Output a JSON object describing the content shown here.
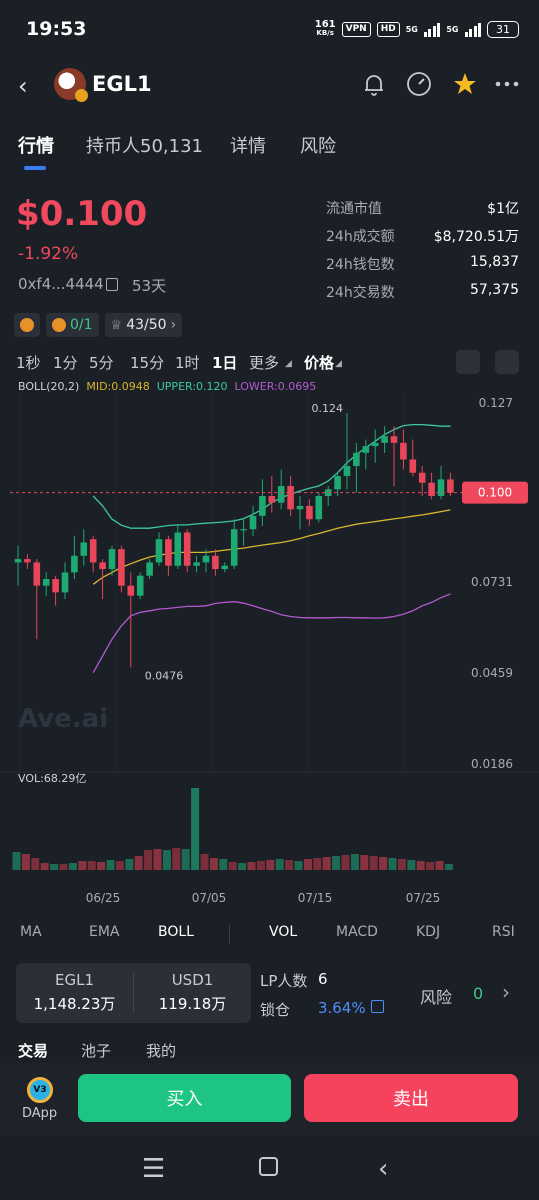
{
  "status_bar": {
    "time": "19:53",
    "net_speed": "161",
    "net_unit": "KB/s",
    "vpn": "VPN",
    "hd": "HD",
    "sim1": "5G",
    "sim2": "5G",
    "battery": "31"
  },
  "header": {
    "token": "EGL1",
    "icons": [
      "back-icon",
      "bell-icon",
      "speedometer-icon",
      "star-icon",
      "more-icon"
    ]
  },
  "tabs": [
    "行情",
    "持币人50,131",
    "详情",
    "风险"
  ],
  "price": {
    "value": "$0.100",
    "change": "-1.92%",
    "address": "0xf4...4444",
    "age": "53天"
  },
  "stats": [
    {
      "label": "流通市值",
      "value": "$1亿"
    },
    {
      "label": "24h成交额",
      "value": "$8,720.51万"
    },
    {
      "label": "24h钱包数",
      "value": "15,837"
    },
    {
      "label": "24h交易数",
      "value": "57,375"
    }
  ],
  "chips": {
    "tax": "0/1",
    "holders_score": "43/50"
  },
  "timeframes": [
    "1秒",
    "1分",
    "5分",
    "15分",
    "1时",
    "1日",
    "更多",
    "价格"
  ],
  "selected_timeframe": "1日",
  "boll": {
    "label": "BOLL(20,2)",
    "mid": "MID:0.0948",
    "upper": "UPPER:0.120",
    "lower": "LOWER:0.0695"
  },
  "chart_data": {
    "type": "candlestick",
    "title": "",
    "y_ticks": [
      "0.127",
      "0.0731",
      "0.0459",
      "0.0186"
    ],
    "y_tick_values": [
      0.127,
      0.0731,
      0.0459,
      0.0186
    ],
    "ylim": [
      0.0186,
      0.127
    ],
    "x_ticks": [
      "06/25",
      "07/05",
      "07/15",
      "07/25"
    ],
    "high_label": "0.124",
    "low_label": "0.0476",
    "current_price_label": "0.100",
    "current_price": 0.1,
    "watermark": "Ave.ai",
    "colors": {
      "up": "#1eaa73",
      "down": "#e8465a",
      "mid": "#d8b62e",
      "upper": "#3ec9a0",
      "lower": "#b35ad0"
    },
    "candles": [
      {
        "o": 0.079,
        "h": 0.084,
        "l": 0.072,
        "c": 0.08
      },
      {
        "o": 0.08,
        "h": 0.0815,
        "l": 0.077,
        "c": 0.079
      },
      {
        "o": 0.079,
        "h": 0.08,
        "l": 0.056,
        "c": 0.072
      },
      {
        "o": 0.072,
        "h": 0.076,
        "l": 0.069,
        "c": 0.074
      },
      {
        "o": 0.074,
        "h": 0.075,
        "l": 0.066,
        "c": 0.07
      },
      {
        "o": 0.07,
        "h": 0.079,
        "l": 0.068,
        "c": 0.076
      },
      {
        "o": 0.076,
        "h": 0.087,
        "l": 0.074,
        "c": 0.081
      },
      {
        "o": 0.081,
        "h": 0.089,
        "l": 0.078,
        "c": 0.085
      },
      {
        "o": 0.086,
        "h": 0.087,
        "l": 0.076,
        "c": 0.079
      },
      {
        "o": 0.079,
        "h": 0.08,
        "l": 0.068,
        "c": 0.077
      },
      {
        "o": 0.077,
        "h": 0.084,
        "l": 0.075,
        "c": 0.083
      },
      {
        "o": 0.083,
        "h": 0.084,
        "l": 0.07,
        "c": 0.072
      },
      {
        "o": 0.072,
        "h": 0.076,
        "l": 0.0476,
        "c": 0.069
      },
      {
        "o": 0.069,
        "h": 0.076,
        "l": 0.068,
        "c": 0.075
      },
      {
        "o": 0.075,
        "h": 0.08,
        "l": 0.074,
        "c": 0.079
      },
      {
        "o": 0.079,
        "h": 0.088,
        "l": 0.078,
        "c": 0.086
      },
      {
        "o": 0.086,
        "h": 0.087,
        "l": 0.075,
        "c": 0.078
      },
      {
        "o": 0.078,
        "h": 0.09,
        "l": 0.077,
        "c": 0.088
      },
      {
        "o": 0.088,
        "h": 0.089,
        "l": 0.076,
        "c": 0.078
      },
      {
        "o": 0.078,
        "h": 0.081,
        "l": 0.076,
        "c": 0.079
      },
      {
        "o": 0.079,
        "h": 0.083,
        "l": 0.076,
        "c": 0.081
      },
      {
        "o": 0.081,
        "h": 0.083,
        "l": 0.075,
        "c": 0.077
      },
      {
        "o": 0.077,
        "h": 0.079,
        "l": 0.076,
        "c": 0.078
      },
      {
        "o": 0.078,
        "h": 0.092,
        "l": 0.077,
        "c": 0.089
      },
      {
        "o": 0.089,
        "h": 0.092,
        "l": 0.084,
        "c": 0.089
      },
      {
        "o": 0.089,
        "h": 0.096,
        "l": 0.087,
        "c": 0.093
      },
      {
        "o": 0.093,
        "h": 0.104,
        "l": 0.09,
        "c": 0.099
      },
      {
        "o": 0.099,
        "h": 0.105,
        "l": 0.094,
        "c": 0.097
      },
      {
        "o": 0.097,
        "h": 0.107,
        "l": 0.095,
        "c": 0.102
      },
      {
        "o": 0.102,
        "h": 0.105,
        "l": 0.093,
        "c": 0.095
      },
      {
        "o": 0.095,
        "h": 0.099,
        "l": 0.089,
        "c": 0.096
      },
      {
        "o": 0.096,
        "h": 0.098,
        "l": 0.09,
        "c": 0.092
      },
      {
        "o": 0.092,
        "h": 0.1,
        "l": 0.091,
        "c": 0.099
      },
      {
        "o": 0.099,
        "h": 0.102,
        "l": 0.096,
        "c": 0.101
      },
      {
        "o": 0.101,
        "h": 0.106,
        "l": 0.099,
        "c": 0.105
      },
      {
        "o": 0.105,
        "h": 0.124,
        "l": 0.101,
        "c": 0.108
      },
      {
        "o": 0.108,
        "h": 0.115,
        "l": 0.1,
        "c": 0.112
      },
      {
        "o": 0.112,
        "h": 0.116,
        "l": 0.107,
        "c": 0.114
      },
      {
        "o": 0.114,
        "h": 0.119,
        "l": 0.109,
        "c": 0.115
      },
      {
        "o": 0.115,
        "h": 0.12,
        "l": 0.112,
        "c": 0.117
      },
      {
        "o": 0.117,
        "h": 0.12,
        "l": 0.102,
        "c": 0.115
      },
      {
        "o": 0.115,
        "h": 0.119,
        "l": 0.107,
        "c": 0.11
      },
      {
        "o": 0.11,
        "h": 0.116,
        "l": 0.105,
        "c": 0.106
      },
      {
        "o": 0.106,
        "h": 0.108,
        "l": 0.099,
        "c": 0.103
      },
      {
        "o": 0.103,
        "h": 0.106,
        "l": 0.098,
        "c": 0.099
      },
      {
        "o": 0.099,
        "h": 0.108,
        "l": 0.098,
        "c": 0.104
      },
      {
        "o": 0.104,
        "h": 0.106,
        "l": 0.099,
        "c": 0.1
      }
    ],
    "mid_band": [
      0.0724,
      0.0745,
      0.076,
      0.0775,
      0.0786,
      0.0797,
      0.0806,
      0.0812,
      0.0816,
      0.082,
      0.082,
      0.082,
      0.082,
      0.0823,
      0.0827,
      0.083,
      0.0833,
      0.0838,
      0.0842,
      0.0846,
      0.085,
      0.0855,
      0.0862,
      0.087,
      0.0877,
      0.0885,
      0.0893,
      0.0899,
      0.0905,
      0.0909,
      0.0913,
      0.0917,
      0.0921,
      0.0925,
      0.0929,
      0.0933,
      0.0938,
      0.0943,
      0.0948
    ],
    "upper_band": [
      0.099,
      0.096,
      0.092,
      0.0902,
      0.0893,
      0.0893,
      0.0893,
      0.0897,
      0.0901,
      0.0903,
      0.0903,
      0.0906,
      0.0908,
      0.091,
      0.0912,
      0.0915,
      0.0922,
      0.0935,
      0.095,
      0.097,
      0.0985,
      0.0995,
      0.1005,
      0.1013,
      0.102,
      0.1035,
      0.106,
      0.109,
      0.1115,
      0.1135,
      0.1155,
      0.1175,
      0.119,
      0.1202,
      0.1205,
      0.1205,
      0.1203,
      0.12,
      0.12
    ],
    "lower_band": [
      0.046,
      0.051,
      0.056,
      0.06,
      0.063,
      0.064,
      0.0645,
      0.065,
      0.0652,
      0.0655,
      0.0658,
      0.0658,
      0.066,
      0.0667,
      0.067,
      0.0672,
      0.0668,
      0.066,
      0.0651,
      0.0643,
      0.0633,
      0.0628,
      0.0625,
      0.0624,
      0.0624,
      0.0624,
      0.0625,
      0.0625,
      0.0624,
      0.0624,
      0.0623,
      0.0624,
      0.0628,
      0.0635,
      0.0645,
      0.066,
      0.067,
      0.0684,
      0.0695
    ],
    "volume_label": "VOL:68.29亿",
    "volume": [
      18,
      16,
      12,
      7,
      6,
      6,
      7,
      9,
      9,
      8,
      10,
      9,
      11,
      14,
      20,
      21,
      20,
      22,
      21,
      82,
      16,
      12,
      11,
      8,
      7,
      8,
      9,
      10,
      11,
      10,
      9,
      11,
      12,
      13,
      14,
      15,
      16,
      15,
      14,
      13,
      12,
      11,
      10,
      9,
      8,
      9,
      6
    ]
  },
  "indicator_tabs": [
    "MA",
    "EMA",
    "BOLL",
    "VOL",
    "MACD",
    "KDJ",
    "RSI"
  ],
  "pool": {
    "base_name": "EGL1",
    "base_amount": "1,148.23万",
    "quote_name": "USD1",
    "quote_amount": "119.18万",
    "lp_label": "LP人数",
    "lp_value": "6",
    "lock_label": "锁仓",
    "lock_value": "3.64%",
    "risk_label": "风险",
    "risk_value": "0"
  },
  "sub_tabs": [
    "交易",
    "池子",
    "我的"
  ],
  "actions": {
    "dapp_badge": "V3",
    "dapp_label": "DApp",
    "buy": "买入",
    "sell": "卖出"
  }
}
